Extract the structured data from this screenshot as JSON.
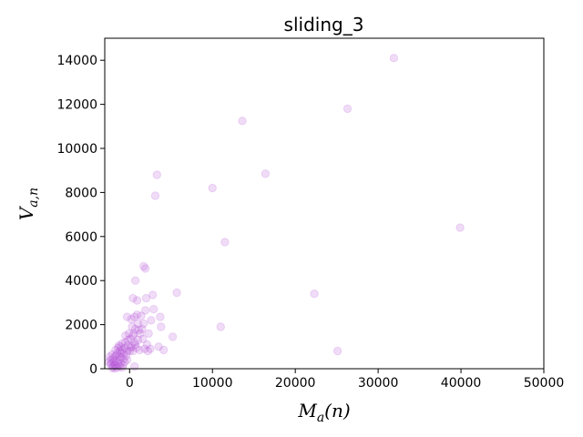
{
  "chart_data": {
    "type": "scatter",
    "title": "sliding_3",
    "xlabel_main": "M",
    "xlabel_sub": "a",
    "xlabel_rest": "(n)",
    "ylabel_main": "V",
    "ylabel_sub": "a,n",
    "xlim": [
      -3000,
      50000
    ],
    "ylim": [
      0,
      15000
    ],
    "xticks": [
      0,
      10000,
      20000,
      30000,
      40000,
      50000
    ],
    "xtick_labels": [
      "0",
      "10000",
      "20000",
      "30000",
      "40000",
      "50000"
    ],
    "yticks": [
      0,
      2000,
      4000,
      6000,
      8000,
      10000,
      12000,
      14000
    ],
    "ytick_labels": [
      "0",
      "2000",
      "4000",
      "6000",
      "8000",
      "10000",
      "12000",
      "14000"
    ],
    "grid": false,
    "marker_color": "#b452d6",
    "marker_alpha": 0.2,
    "points": [
      [
        31900,
        14100
      ],
      [
        13600,
        11250
      ],
      [
        26300,
        11800
      ],
      [
        3300,
        8800
      ],
      [
        3100,
        7850
      ],
      [
        10000,
        8200
      ],
      [
        16400,
        8850
      ],
      [
        11500,
        5750
      ],
      [
        39900,
        6400
      ],
      [
        22300,
        3400
      ],
      [
        25100,
        800
      ],
      [
        11000,
        1900
      ],
      [
        5700,
        3450
      ],
      [
        5200,
        1450
      ],
      [
        4100,
        850
      ],
      [
        3700,
        2350
      ],
      [
        3800,
        1900
      ],
      [
        3500,
        1000
      ],
      [
        2800,
        3350
      ],
      [
        2000,
        3200
      ],
      [
        1700,
        4650
      ],
      [
        1900,
        4550
      ],
      [
        700,
        4000
      ],
      [
        400,
        3200
      ],
      [
        900,
        3100
      ],
      [
        2900,
        2700
      ],
      [
        2600,
        2200
      ],
      [
        2300,
        1600
      ],
      [
        2100,
        1100
      ],
      [
        1800,
        900
      ],
      [
        1500,
        1800
      ],
      [
        1700,
        2050
      ],
      [
        1400,
        2400
      ],
      [
        1900,
        2650
      ],
      [
        600,
        2350
      ],
      [
        900,
        2450
      ],
      [
        200,
        2250
      ],
      [
        300,
        1900
      ],
      [
        1000,
        2050
      ],
      [
        700,
        1800
      ],
      [
        1300,
        1600
      ],
      [
        1600,
        1350
      ],
      [
        1000,
        1300
      ],
      [
        700,
        1100
      ],
      [
        2500,
        900
      ],
      [
        2200,
        800
      ],
      [
        1200,
        850
      ],
      [
        400,
        800
      ],
      [
        -300,
        2350
      ],
      [
        -100,
        1600
      ],
      [
        -500,
        1500
      ],
      [
        -200,
        1050
      ],
      [
        100,
        950
      ],
      [
        -600,
        950
      ],
      [
        -900,
        850
      ],
      [
        -300,
        800
      ],
      [
        -1200,
        800
      ],
      [
        -1500,
        700
      ],
      [
        -1800,
        550
      ],
      [
        -2100,
        650
      ],
      [
        -2400,
        550
      ],
      [
        -1000,
        500
      ],
      [
        -1300,
        400
      ],
      [
        -1600,
        350
      ],
      [
        -1900,
        300
      ],
      [
        -2200,
        250
      ],
      [
        -700,
        450
      ],
      [
        -1100,
        250
      ],
      [
        -1400,
        200
      ],
      [
        -1700,
        150
      ],
      [
        -2000,
        100
      ],
      [
        -2300,
        200
      ],
      [
        -800,
        150
      ],
      [
        -1200,
        100
      ],
      [
        -1500,
        50
      ],
      [
        -1800,
        20
      ],
      [
        -2100,
        30
      ],
      [
        -900,
        50
      ],
      [
        -600,
        300
      ],
      [
        -400,
        600
      ],
      [
        -1000,
        700
      ],
      [
        -1400,
        950
      ],
      [
        -1700,
        850
      ],
      [
        -500,
        1200
      ],
      [
        -200,
        1300
      ],
      [
        100,
        1350
      ],
      [
        400,
        1500
      ],
      [
        -1300,
        1050
      ],
      [
        -900,
        1150
      ],
      [
        600,
        100
      ],
      [
        500,
        1600
      ],
      [
        1100,
        1750
      ],
      [
        800,
        950
      ],
      [
        -1600,
        600
      ],
      [
        -2000,
        450
      ],
      [
        -2300,
        400
      ],
      [
        -2500,
        300
      ],
      [
        -1100,
        1000
      ],
      [
        -700,
        700
      ],
      [
        -300,
        400
      ],
      [
        0,
        800
      ],
      [
        300,
        1000
      ],
      [
        600,
        1200
      ],
      [
        -1800,
        200
      ],
      [
        -1200,
        550
      ]
    ]
  }
}
